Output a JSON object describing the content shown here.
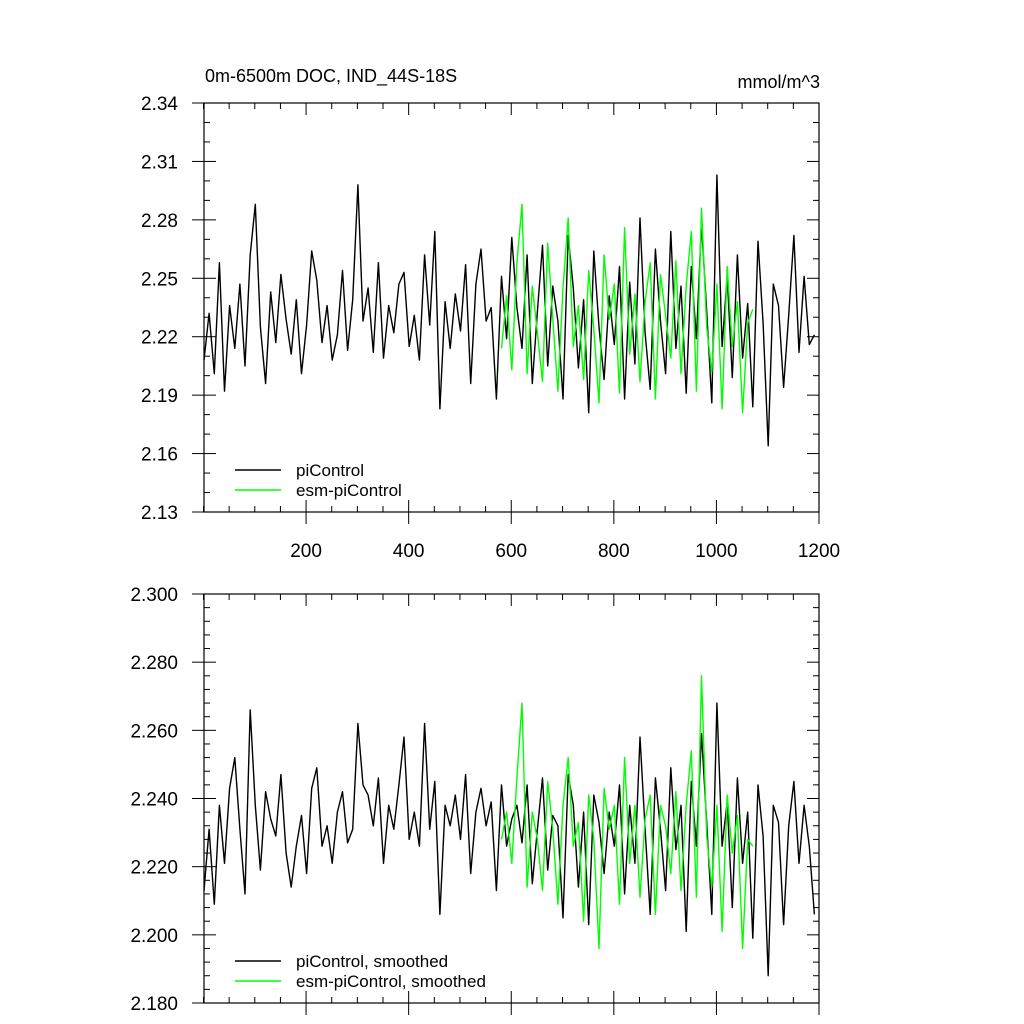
{
  "chart_data": [
    {
      "type": "line",
      "title": "0m-6500m DOC, IND_44S-18S",
      "units": "mmol/m^3",
      "xlim": [
        1,
        1200
      ],
      "ylim": [
        2.13,
        2.34
      ],
      "x_ticks": [
        200,
        400,
        600,
        800,
        1000,
        1200
      ],
      "y_ticks": [
        2.13,
        2.16,
        2.19,
        2.22,
        2.25,
        2.28,
        2.31,
        2.34
      ],
      "y_tick_labels": [
        "2.13",
        "2.16",
        "2.19",
        "2.22",
        "2.25",
        "2.28",
        "2.31",
        "2.34"
      ],
      "x_tick_labels": [
        "200",
        "400",
        "600",
        "800",
        "1000",
        "1200"
      ],
      "legend": "bottom-left",
      "series": [
        {
          "name": "piControl",
          "color": "#000000",
          "x_start": 1,
          "x_step": 10,
          "values": [
            2.208,
            2.232,
            2.201,
            2.258,
            2.192,
            2.236,
            2.214,
            2.247,
            2.205,
            2.262,
            2.288,
            2.225,
            2.196,
            2.243,
            2.217,
            2.252,
            2.229,
            2.211,
            2.239,
            2.201,
            2.226,
            2.264,
            2.249,
            2.217,
            2.236,
            2.208,
            2.221,
            2.254,
            2.213,
            2.239,
            2.298,
            2.228,
            2.245,
            2.212,
            2.258,
            2.209,
            2.236,
            2.222,
            2.247,
            2.253,
            2.215,
            2.231,
            2.208,
            2.262,
            2.226,
            2.274,
            2.183,
            2.238,
            2.214,
            2.242,
            2.223,
            2.257,
            2.196,
            2.247,
            2.265,
            2.228,
            2.235,
            2.188,
            2.251,
            2.219,
            2.271,
            2.235,
            2.214,
            2.262,
            2.196,
            2.233,
            2.267,
            2.205,
            2.246,
            2.228,
            2.188,
            2.272,
            2.245,
            2.204,
            2.239,
            2.181,
            2.264,
            2.225,
            2.198,
            2.241,
            2.216,
            2.256,
            2.188,
            2.248,
            2.206,
            2.281,
            2.222,
            2.193,
            2.265,
            2.228,
            2.201,
            2.274,
            2.214,
            2.246,
            2.191,
            2.256,
            2.219,
            2.278,
            2.233,
            2.186,
            2.303,
            2.215,
            2.251,
            2.199,
            2.262,
            2.209,
            2.237,
            2.184,
            2.269,
            2.227,
            2.164,
            2.247,
            2.236,
            2.194,
            2.231,
            2.272,
            2.212,
            2.251,
            2.216,
            2.221
          ]
        },
        {
          "name": "esm-piControl",
          "color": "#00ff00",
          "x_start": 581,
          "x_step": 10,
          "values": [
            2.214,
            2.241,
            2.203,
            2.258,
            2.288,
            2.201,
            2.246,
            2.222,
            2.197,
            2.268,
            2.229,
            2.192,
            2.245,
            2.281,
            2.215,
            2.236,
            2.198,
            2.254,
            2.224,
            2.186,
            2.262,
            2.229,
            2.247,
            2.191,
            2.276,
            2.211,
            2.242,
            2.197,
            2.238,
            2.258,
            2.188,
            2.252,
            2.231,
            2.209,
            2.259,
            2.201,
            2.246,
            2.274,
            2.192,
            2.286,
            2.225,
            2.202,
            2.247,
            2.183,
            2.256,
            2.215,
            2.238,
            2.181,
            2.227,
            2.234
          ]
        }
      ]
    },
    {
      "type": "line",
      "xlim": [
        1,
        1200
      ],
      "ylim": [
        2.18,
        2.3
      ],
      "y_ticks": [
        2.18,
        2.2,
        2.22,
        2.24,
        2.26,
        2.28,
        2.3
      ],
      "y_tick_labels": [
        "2.180",
        "2.200",
        "2.220",
        "2.240",
        "2.260",
        "2.280",
        "2.300"
      ],
      "x_ticks": [
        200,
        400,
        600,
        800,
        1000,
        1200
      ],
      "legend": "bottom-left",
      "series": [
        {
          "name": "piControl, smoothed",
          "color": "#000000",
          "x_start": 1,
          "x_step": 10,
          "values": [
            2.213,
            2.231,
            2.209,
            2.238,
            2.221,
            2.243,
            2.252,
            2.231,
            2.212,
            2.266,
            2.238,
            2.219,
            2.242,
            2.234,
            2.229,
            2.247,
            2.224,
            2.214,
            2.226,
            2.235,
            2.218,
            2.243,
            2.249,
            2.226,
            2.232,
            2.221,
            2.236,
            2.242,
            2.227,
            2.231,
            2.262,
            2.244,
            2.241,
            2.232,
            2.246,
            2.221,
            2.238,
            2.231,
            2.244,
            2.258,
            2.228,
            2.236,
            2.226,
            2.262,
            2.231,
            2.245,
            2.206,
            2.238,
            2.232,
            2.241,
            2.228,
            2.247,
            2.218,
            2.236,
            2.243,
            2.232,
            2.239,
            2.213,
            2.244,
            2.226,
            2.234,
            2.238,
            2.227,
            2.244,
            2.215,
            2.231,
            2.246,
            2.219,
            2.235,
            2.232,
            2.205,
            2.247,
            2.238,
            2.214,
            2.236,
            2.203,
            2.241,
            2.233,
            2.218,
            2.236,
            2.226,
            2.244,
            2.212,
            2.238,
            2.221,
            2.258,
            2.231,
            2.206,
            2.246,
            2.231,
            2.213,
            2.249,
            2.225,
            2.238,
            2.201,
            2.245,
            2.226,
            2.259,
            2.233,
            2.206,
            2.268,
            2.226,
            2.239,
            2.208,
            2.246,
            2.221,
            2.236,
            2.199,
            2.244,
            2.229,
            2.188,
            2.238,
            2.233,
            2.203,
            2.232,
            2.245,
            2.221,
            2.238,
            2.226,
            2.206
          ]
        },
        {
          "name": "esm-piControl, smoothed",
          "color": "#00ff00",
          "x_start": 581,
          "x_step": 10,
          "values": [
            2.228,
            2.236,
            2.221,
            2.246,
            2.268,
            2.214,
            2.236,
            2.228,
            2.213,
            2.245,
            2.231,
            2.209,
            2.238,
            2.252,
            2.226,
            2.233,
            2.204,
            2.241,
            2.228,
            2.196,
            2.243,
            2.231,
            2.238,
            2.209,
            2.252,
            2.221,
            2.238,
            2.211,
            2.234,
            2.241,
            2.206,
            2.238,
            2.232,
            2.218,
            2.242,
            2.213,
            2.238,
            2.254,
            2.211,
            2.276,
            2.229,
            2.214,
            2.238,
            2.201,
            2.241,
            2.224,
            2.235,
            2.196,
            2.228,
            2.226
          ]
        }
      ]
    }
  ]
}
